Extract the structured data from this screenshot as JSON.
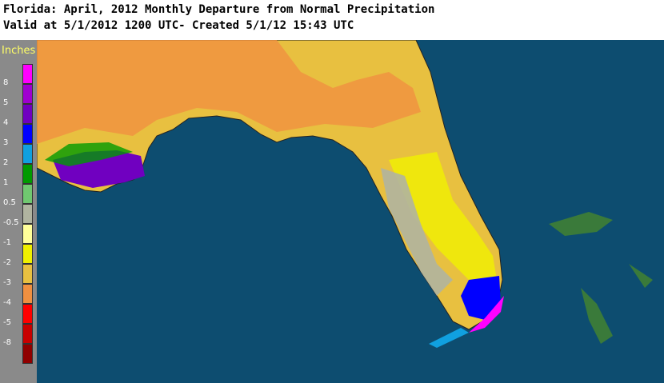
{
  "header": {
    "title": "Florida: April, 2012 Monthly Departure from Normal Precipitation",
    "subtitle": "Valid at 5/1/2012 1200 UTC- Created 5/1/12 15:43 UTC"
  },
  "legend": {
    "title": "Inches",
    "labels": [
      "8",
      "5",
      "4",
      "3",
      "2",
      "1",
      "0.5",
      "-0.5",
      "-1",
      "-2",
      "-3",
      "-4",
      "-5",
      "-8"
    ],
    "colors": [
      "#ff00ff",
      "#a000d0",
      "#7000c0",
      "#0000ff",
      "#10a0e0",
      "#009a00",
      "#70c870",
      "#b0b4a0",
      "#ffff99",
      "#f0f000",
      "#e8c040",
      "#f09040",
      "#ff0000",
      "#c80000",
      "#900000"
    ]
  }
}
